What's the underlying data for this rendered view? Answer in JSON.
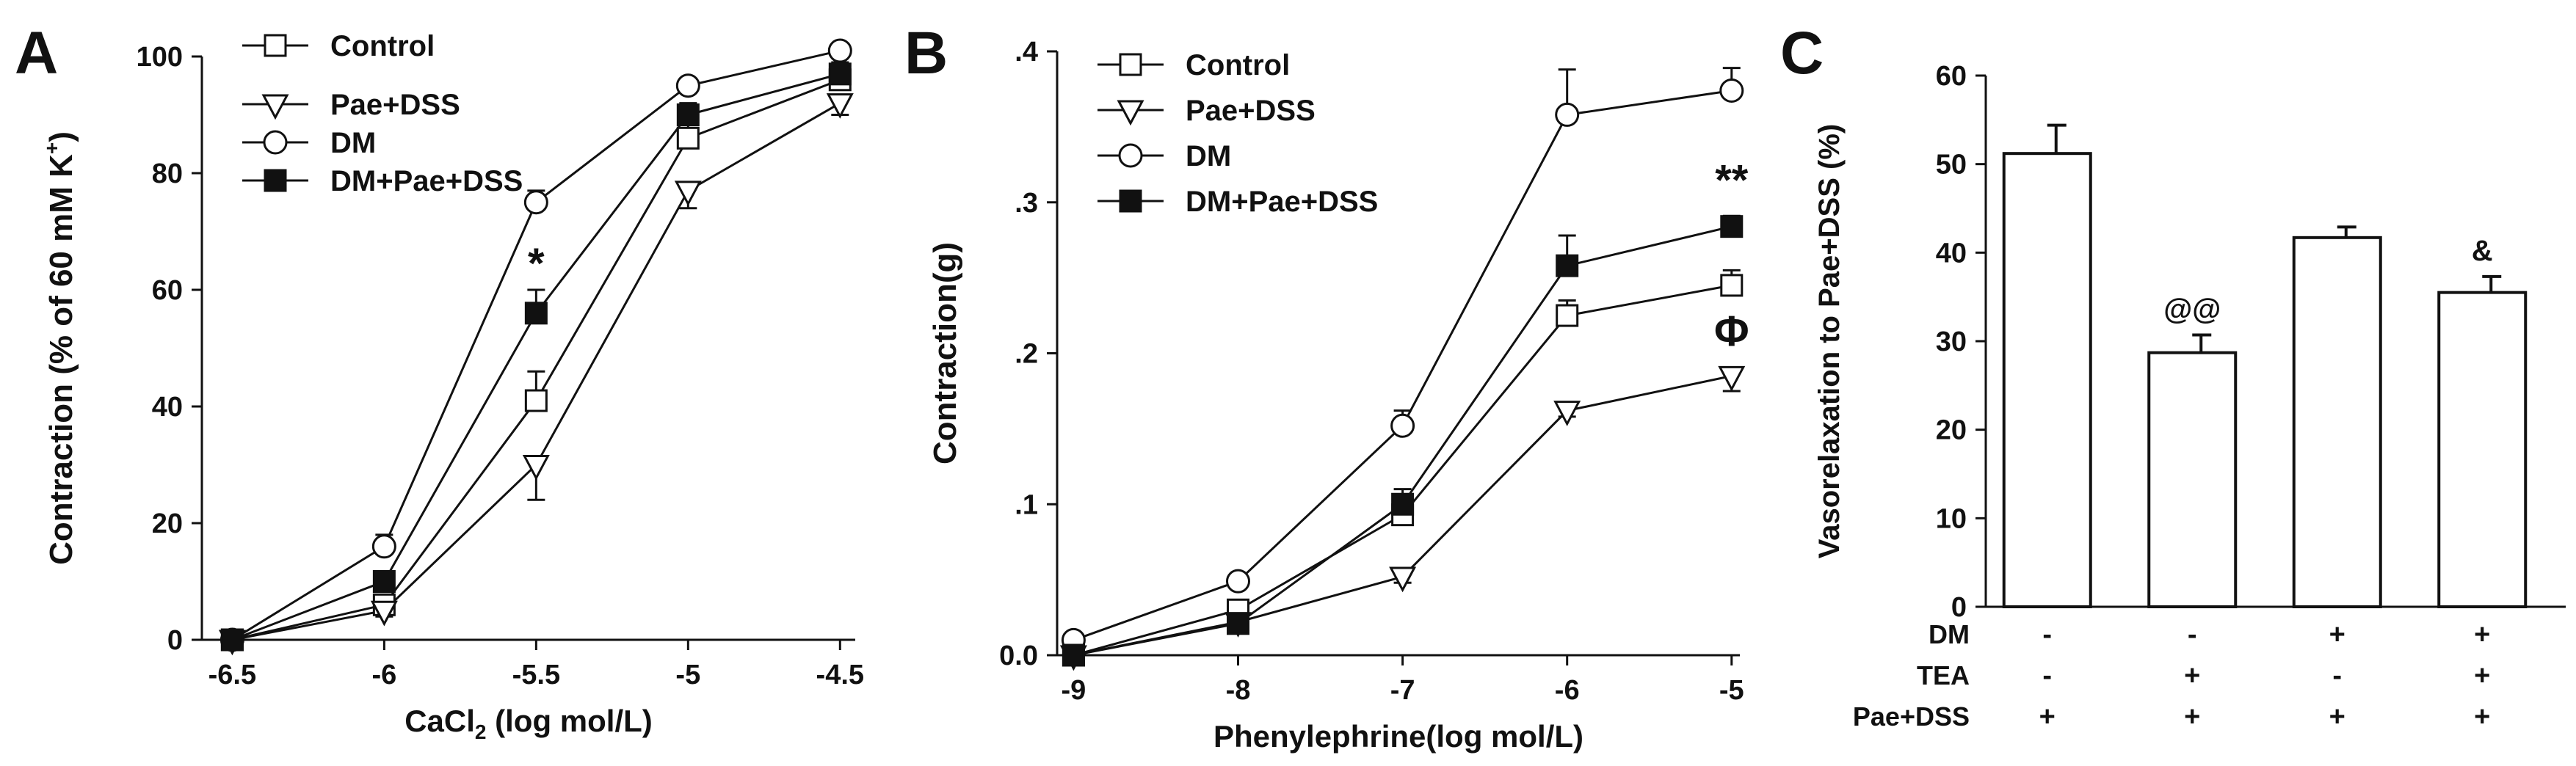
{
  "chart_data": [
    {
      "panel": "A",
      "type": "line",
      "title": "",
      "xlabel": "CaCl",
      "xlabel_sub": "2",
      "xlabel_rest": " (log mol/L)",
      "ylabel": "Contraction (% of 60 mM K",
      "ylabel_sup": "+",
      "ylabel_end": ")",
      "xlim": [
        -6.6,
        -4.45
      ],
      "ylim": [
        0,
        100
      ],
      "xticks": [
        -6.5,
        -6,
        -5.5,
        -5,
        -4.5
      ],
      "xtick_labels": [
        "-6.5",
        "-6",
        "-5.5",
        "-5",
        "-4.5"
      ],
      "yticks": [
        0,
        20,
        40,
        60,
        80,
        100
      ],
      "ytick_labels": [
        "0",
        "20",
        "40",
        "60",
        "80",
        "100"
      ],
      "legend_position": "top-left",
      "series": [
        {
          "name": "Control",
          "marker": "open-square",
          "x": [
            -6.5,
            -6,
            -5.5,
            -5,
            -4.5
          ],
          "y": [
            0,
            6,
            41,
            86,
            96
          ],
          "err": [
            0,
            1,
            5,
            3,
            2
          ]
        },
        {
          "name": "Pae+DSS",
          "marker": "open-triangle-down",
          "x": [
            -6.5,
            -6,
            -5.5,
            -5,
            -4.5
          ],
          "y": [
            0,
            5,
            30,
            77,
            92
          ],
          "err": [
            0,
            1,
            6,
            3,
            2
          ]
        },
        {
          "name": "DM",
          "marker": "open-circle",
          "x": [
            -6.5,
            -6,
            -5.5,
            -5,
            -4.5
          ],
          "y": [
            0,
            16,
            75,
            95,
            101
          ],
          "err": [
            0,
            2,
            2,
            1,
            1
          ]
        },
        {
          "name": "DM+Pae+DSS",
          "marker": "filled-square",
          "x": [
            -6.5,
            -6,
            -5.5,
            -5,
            -4.5
          ],
          "y": [
            0,
            10,
            56,
            90,
            97
          ],
          "err": [
            0,
            1,
            4,
            2,
            2
          ]
        }
      ],
      "annotations": [
        {
          "text": "*",
          "x": -5.5,
          "y": 62
        }
      ]
    },
    {
      "panel": "B",
      "type": "line",
      "title": "",
      "xlabel": "Phenylephrine(log mol/L)",
      "ylabel": "Contraction(g)",
      "xlim": [
        -9.1,
        -4.95
      ],
      "ylim": [
        0,
        0.4
      ],
      "xticks": [
        -9,
        -8,
        -7,
        -6,
        -5
      ],
      "xtick_labels": [
        "-9",
        "-8",
        "-7",
        "-6",
        "-5"
      ],
      "yticks": [
        0,
        0.1,
        0.2,
        0.3,
        0.4
      ],
      "ytick_labels": [
        "0.0",
        ".1",
        ".2",
        ".3",
        ".4"
      ],
      "legend_position": "top-left",
      "series": [
        {
          "name": "Control",
          "marker": "open-square",
          "x": [
            -9,
            -8,
            -7,
            -6,
            -5
          ],
          "y": [
            0,
            0.03,
            0.093,
            0.225,
            0.245
          ],
          "err": [
            0,
            0.003,
            0.005,
            0.01,
            0.01
          ]
        },
        {
          "name": "Pae+DSS",
          "marker": "open-triangle-down",
          "x": [
            -9,
            -8,
            -7,
            -6,
            -5
          ],
          "y": [
            0,
            0.022,
            0.052,
            0.162,
            0.185
          ],
          "err": [
            0,
            0.002,
            0.004,
            0.004,
            0.01
          ]
        },
        {
          "name": "DM",
          "marker": "open-circle",
          "x": [
            -9,
            -8,
            -7,
            -6,
            -5
          ],
          "y": [
            0.01,
            0.049,
            0.152,
            0.358,
            0.374
          ],
          "err": [
            0,
            0.003,
            0.01,
            0.03,
            0.015
          ]
        },
        {
          "name": "DM+Pae+DSS",
          "marker": "filled-square",
          "x": [
            -9,
            -8,
            -7,
            -6,
            -5
          ],
          "y": [
            0,
            0.021,
            0.1,
            0.258,
            0.284
          ],
          "err": [
            0,
            0.002,
            0.01,
            0.02,
            0.007
          ]
        }
      ],
      "annotations": [
        {
          "text": "**",
          "x": -5,
          "y": 0.305
        },
        {
          "text": "Φ",
          "x": -5,
          "y": 0.205
        }
      ]
    },
    {
      "panel": "C",
      "type": "bar",
      "title": "",
      "xlabel": "",
      "ylabel": "Vasorelaxation to Pae+DSS (%)",
      "ylim": [
        0,
        60
      ],
      "yticks": [
        0,
        10,
        20,
        30,
        40,
        50,
        60
      ],
      "ytick_labels": [
        "0",
        "10",
        "20",
        "30",
        "40",
        "50",
        "60"
      ],
      "values": [
        51.2,
        28.7,
        41.7,
        35.5
      ],
      "err": [
        3.2,
        2.0,
        1.2,
        1.8
      ],
      "bar_annotations": [
        "",
        "@@",
        "",
        "&"
      ],
      "treatment_rows": [
        {
          "label": "DM",
          "signs": [
            "-",
            "-",
            "+",
            "+"
          ]
        },
        {
          "label": "TEA",
          "signs": [
            "-",
            "+",
            "-",
            "+"
          ]
        },
        {
          "label": "Pae+DSS",
          "signs": [
            "+",
            "+",
            "+",
            "+"
          ]
        }
      ]
    }
  ],
  "panel_labels": [
    "A",
    "B",
    "C"
  ]
}
